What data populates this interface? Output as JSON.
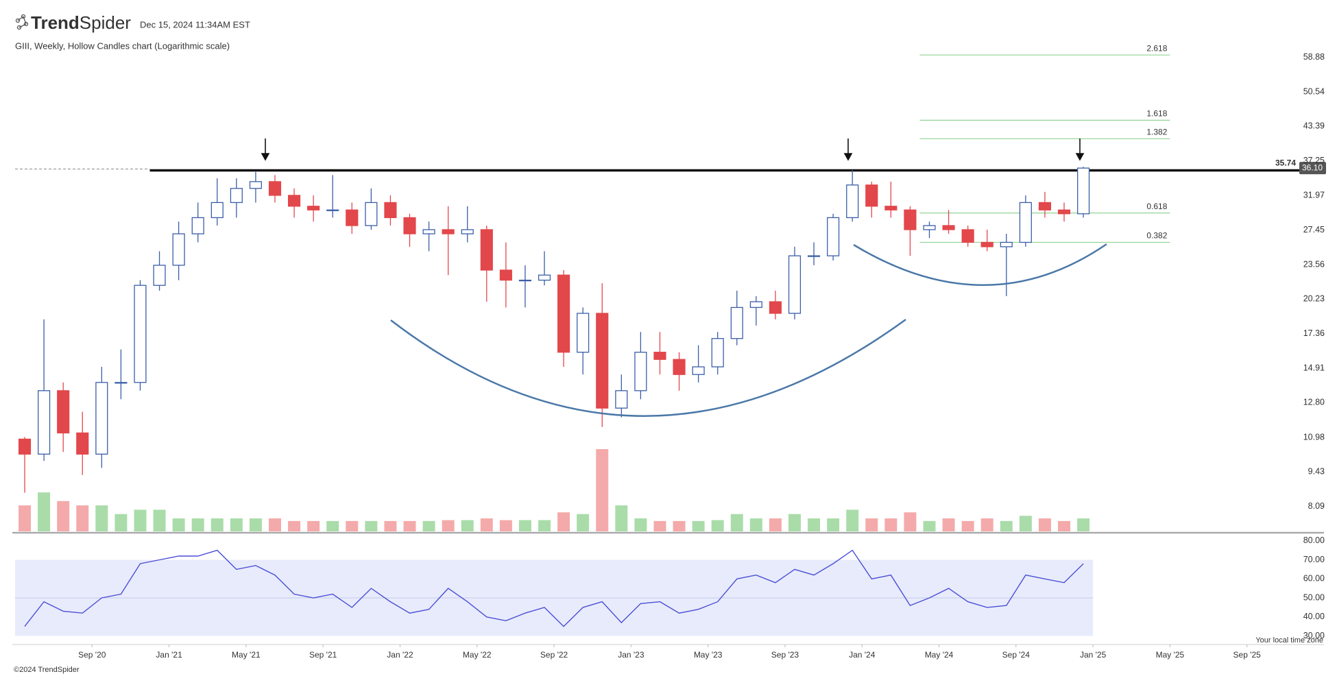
{
  "header": {
    "brand_bold": "Trend",
    "brand_rest": "Spider",
    "timestamp": "Dec 15, 2024 11:34AM EST"
  },
  "footer": {
    "copyright": "©2024 TrendSpider",
    "timezone_note": "Your local time zone"
  },
  "chart_data": {
    "type": "candlestick",
    "title": "GIII, Weekly, Hollow Candles chart (Logarithmic scale)",
    "log_scale": true,
    "up_color": "#3a5ea8",
    "down_color": "#e2474b",
    "volume_up_color": "#a9dca9",
    "volume_down_color": "#f4aaaa",
    "x": [
      "2020-05",
      "2020-06",
      "2020-07",
      "2020-08",
      "2020-09",
      "2020-10",
      "2020-11",
      "2020-12",
      "2021-01",
      "2021-02",
      "2021-03",
      "2021-04",
      "2021-05",
      "2021-06",
      "2021-07",
      "2021-08",
      "2021-09",
      "2021-10",
      "2021-11",
      "2021-12",
      "2022-01",
      "2022-02",
      "2022-03",
      "2022-04",
      "2022-05",
      "2022-06",
      "2022-07",
      "2022-08",
      "2022-09",
      "2022-10",
      "2022-11",
      "2022-12",
      "2023-01",
      "2023-02",
      "2023-03",
      "2023-04",
      "2023-05",
      "2023-06",
      "2023-07",
      "2023-08",
      "2023-09",
      "2023-10",
      "2023-11",
      "2023-12",
      "2024-01",
      "2024-02",
      "2024-03",
      "2024-04",
      "2024-05",
      "2024-06",
      "2024-07",
      "2024-08",
      "2024-09",
      "2024-10",
      "2024-11",
      "2024-12"
    ],
    "open": [
      10.9,
      10.2,
      13.5,
      11.2,
      10.2,
      14,
      14,
      21.5,
      23.5,
      27,
      29,
      31,
      33,
      34,
      32,
      30.5,
      30,
      30,
      28,
      31,
      29,
      27,
      27.5,
      27,
      27.5,
      23,
      22,
      22,
      22.5,
      16,
      19,
      12.5,
      13.5,
      16,
      15.5,
      14.5,
      15,
      17,
      19.5,
      20,
      19,
      24.5,
      24.5,
      29,
      33.5,
      30.5,
      30,
      27.5,
      28,
      27.5,
      26,
      25.5,
      26,
      31,
      30,
      29.5
    ],
    "high": [
      11,
      18.5,
      14,
      12.3,
      15,
      16.2,
      22,
      25,
      28.5,
      31,
      34.5,
      34.5,
      35.5,
      35,
      33,
      32,
      35,
      31,
      33,
      32,
      29.5,
      28.5,
      30.5,
      30.5,
      28,
      26,
      23.5,
      25,
      23,
      19.5,
      21.7,
      14.5,
      17.5,
      17.5,
      16,
      16.5,
      17.5,
      21,
      20.5,
      21,
      25.5,
      26,
      29.5,
      35.8,
      34,
      34,
      30.5,
      28.5,
      30,
      28,
      27.5,
      27,
      32,
      32.5,
      31,
      36.3
    ],
    "low": [
      8.6,
      9.9,
      10.3,
      9.3,
      9.6,
      13,
      13.5,
      21,
      22,
      26,
      28,
      29,
      31,
      31,
      29,
      28.5,
      29,
      27,
      27.5,
      28,
      25.5,
      25,
      22.5,
      26,
      20,
      19.5,
      19.5,
      21.5,
      15,
      14.5,
      11.5,
      12,
      13,
      14.5,
      13.5,
      14,
      14.5,
      16.5,
      18,
      18.5,
      18.5,
      23.5,
      24,
      28.5,
      29,
      29,
      24.5,
      26.5,
      27,
      25.5,
      25,
      20.5,
      25.5,
      29,
      28.5,
      29
    ],
    "close": [
      10.2,
      13.5,
      11.2,
      10.2,
      14,
      14,
      21.5,
      23.5,
      27,
      29,
      31,
      33,
      34,
      32,
      30.5,
      30,
      30,
      28,
      31,
      29,
      27,
      27.5,
      27,
      27.5,
      23,
      22,
      22,
      22.5,
      16,
      19,
      12.5,
      13.5,
      16,
      15.5,
      14.5,
      15,
      17,
      19.5,
      20,
      19,
      24.5,
      24.5,
      29,
      33.5,
      30.5,
      30,
      27.5,
      28,
      27.5,
      26,
      25.5,
      26,
      31,
      30,
      29.5,
      36.1
    ],
    "volume": [
      30,
      45,
      35,
      30,
      30,
      20,
      25,
      25,
      15,
      15,
      15,
      15,
      15,
      15,
      12,
      12,
      12,
      12,
      12,
      12,
      12,
      12,
      13,
      13,
      15,
      13,
      13,
      13,
      22,
      20,
      95,
      30,
      15,
      12,
      12,
      12,
      13,
      20,
      15,
      15,
      20,
      15,
      15,
      25,
      15,
      15,
      22,
      12,
      15,
      12,
      15,
      12,
      18,
      15,
      12,
      15
    ],
    "xlim": [
      "2020-05",
      "2026-01"
    ],
    "xticks": [
      {
        "value": "2020-09",
        "label": "Sep '20"
      },
      {
        "value": "2021-01",
        "label": "Jan '21"
      },
      {
        "value": "2021-05",
        "label": "May '21"
      },
      {
        "value": "2021-09",
        "label": "Sep '21"
      },
      {
        "value": "2022-01",
        "label": "Jan '22"
      },
      {
        "value": "2022-05",
        "label": "May '22"
      },
      {
        "value": "2022-09",
        "label": "Sep '22"
      },
      {
        "value": "2023-01",
        "label": "Jan '23"
      },
      {
        "value": "2023-05",
        "label": "May '23"
      },
      {
        "value": "2023-09",
        "label": "Sep '23"
      },
      {
        "value": "2024-01",
        "label": "Jan '24"
      },
      {
        "value": "2024-05",
        "label": "May '24"
      },
      {
        "value": "2024-09",
        "label": "Sep '24"
      },
      {
        "value": "2025-01",
        "label": "Jan '25"
      },
      {
        "value": "2025-05",
        "label": "May '25"
      },
      {
        "value": "2025-09",
        "label": "Sep '25"
      }
    ],
    "ylim": [
      7.25,
      65.2
    ],
    "yticks": [
      8.09,
      9.43,
      10.98,
      {
        "value": 12.8,
        "label": "12.80"
      },
      14.91,
      17.36,
      20.23,
      23.56,
      27.45,
      31.97,
      37.25,
      43.39,
      50.54,
      58.88
    ],
    "resistance": 35.74,
    "last_price": {
      "value": 36.1,
      "label": "36.10"
    },
    "fib_start": "2024-04",
    "fib_end": "2025-05",
    "fib_levels": [
      {
        "ratio": 2.618,
        "price": 59.5
      },
      {
        "ratio": 1.618,
        "price": 44.6
      },
      {
        "ratio": 1.382,
        "price": 41.1
      },
      {
        "ratio": 0.618,
        "price": 29.6
      },
      {
        "ratio": 0.382,
        "price": 26.0
      }
    ],
    "rsi": {
      "color": "#4b4fd6",
      "band_color": "#e8ebfb",
      "values": [
        35,
        48,
        43,
        42,
        50,
        52,
        68,
        70,
        72,
        72,
        75,
        65,
        67,
        62,
        52,
        50,
        52,
        45,
        55,
        48,
        42,
        44,
        55,
        48,
        40,
        38,
        42,
        45,
        35,
        45,
        48,
        37,
        47,
        48,
        42,
        44,
        48,
        60,
        62,
        58,
        65,
        62,
        68,
        75,
        60,
        62,
        46,
        50,
        55,
        48,
        45,
        46,
        62,
        60,
        58,
        68
      ],
      "ylim": [
        25.5,
        82.8
      ],
      "yticks": [
        {
          "value": 80,
          "label": "80.00"
        },
        {
          "value": 70,
          "label": "70.00"
        },
        {
          "value": 60,
          "label": "60.00"
        },
        {
          "value": 50,
          "label": "50.00"
        },
        {
          "value": 40,
          "label": "40.00"
        },
        {
          "value": 30,
          "label": "30.00"
        }
      ],
      "band": [
        30,
        70
      ],
      "midline": 50
    }
  }
}
